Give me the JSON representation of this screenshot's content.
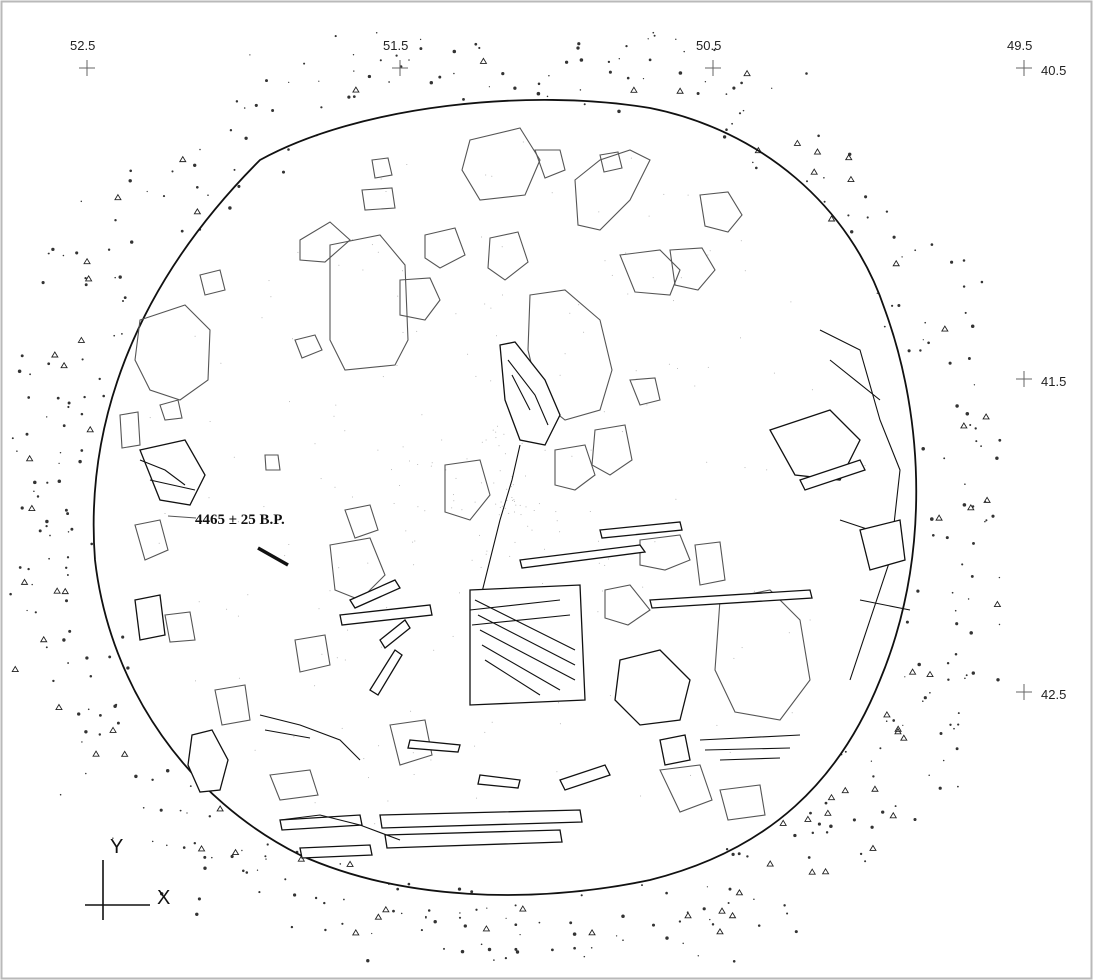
{
  "grid": {
    "x_labels": [
      "52.5",
      "51.5",
      "50.5",
      "49.5"
    ],
    "y_labels": [
      "40.5",
      "41.5",
      "42.5"
    ]
  },
  "annotation": {
    "date": "4465 ± 25 B.P."
  },
  "axes": {
    "y": "Y",
    "x": "X"
  }
}
